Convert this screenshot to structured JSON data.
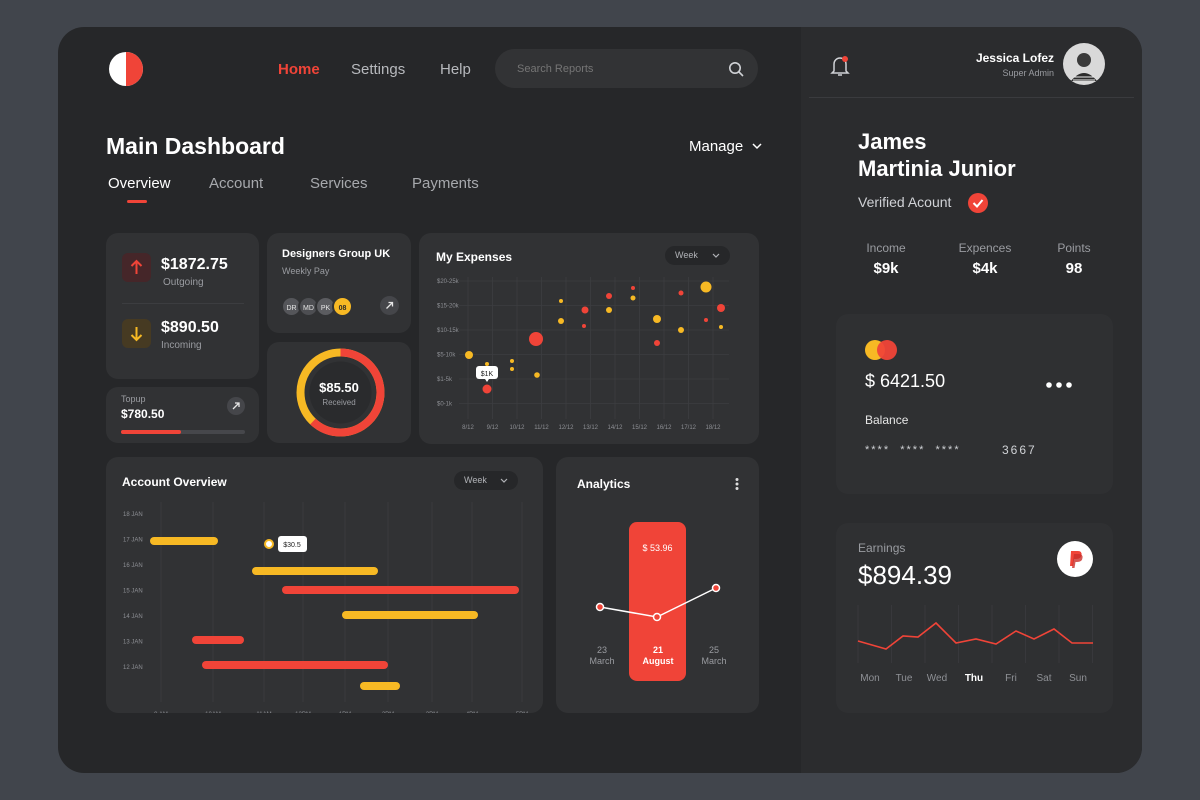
{
  "nav": {
    "home": "Home",
    "settings": "Settings",
    "help": "Help",
    "search_placeholder": "Search Reports",
    "logo_icon": "half-circle-logo"
  },
  "header": {
    "title": "Main Dashboard",
    "manage": "Manage"
  },
  "tabs": [
    "Overview",
    "Account",
    "Services",
    "Payments"
  ],
  "outgoing": {
    "amount": "$1872.75",
    "label": "Outgoing"
  },
  "incoming": {
    "amount": "$890.50",
    "label": "Incoming"
  },
  "topup": {
    "label": "Topup",
    "amount": "$780.50",
    "progress": 0.48
  },
  "group": {
    "name": "Designers Group UK",
    "sub": "Weekly Pay",
    "members": [
      "DR",
      "MD",
      "PK",
      "08"
    ]
  },
  "donut": {
    "amount": "$85.50",
    "label": "Received",
    "red_fraction": 0.62
  },
  "expenses": {
    "title": "My Expenses",
    "period": "Week",
    "y_ticks": [
      "$20-25k",
      "$15-20k",
      "$10-15k",
      "$5-10k",
      "$1-5k",
      "$0-1k"
    ],
    "x_ticks": [
      "8/12",
      "9/12",
      "10/12",
      "11/12",
      "12/12",
      "13/12",
      "14/12",
      "15/12",
      "16/12",
      "17/12",
      "18/12"
    ],
    "tooltip": "$1K"
  },
  "overview": {
    "title": "Account Overview",
    "period": "Week",
    "rows": [
      "18 JAN",
      "17 JAN",
      "16 JAN",
      "15 JAN",
      "14 JAN",
      "13 JAN",
      "12 JAN"
    ],
    "times": [
      "9 AM",
      "10AM",
      "11AM",
      "12PM",
      "1PM",
      "2PM",
      "3PM",
      "4PM",
      "5PM"
    ],
    "tooltip": "$30.5"
  },
  "analytics": {
    "title": "Analytics",
    "value": "$ 53.96",
    "days": [
      {
        "num": "23",
        "month": "March"
      },
      {
        "num": "21",
        "month": "August"
      },
      {
        "num": "25",
        "month": "March"
      }
    ]
  },
  "user": {
    "name": "Jessica Lofez",
    "role": "Super Admin"
  },
  "profile": {
    "name_line1": "James",
    "name_line2": "Martinia Junior",
    "verified": "Verified Acount"
  },
  "stats": [
    {
      "label": "Income",
      "value": "$9k"
    },
    {
      "label": "Expences",
      "value": "$4k"
    },
    {
      "label": "Points",
      "value": "98"
    }
  ],
  "card": {
    "balance": "$ 6421.50",
    "balance_label": "Balance",
    "masked": [
      "****",
      "****",
      "****"
    ],
    "last4": "3667"
  },
  "earnings": {
    "label": "Earnings",
    "amount": "$894.39",
    "days": [
      "Mon",
      "Tue",
      "Wed",
      "Thu",
      "Fri",
      "Sat",
      "Sun"
    ],
    "active_day": "Thu"
  },
  "colors": {
    "accent": "#f04438",
    "yellow": "#f7b924",
    "panel": "#313234",
    "bg": "#262729"
  }
}
